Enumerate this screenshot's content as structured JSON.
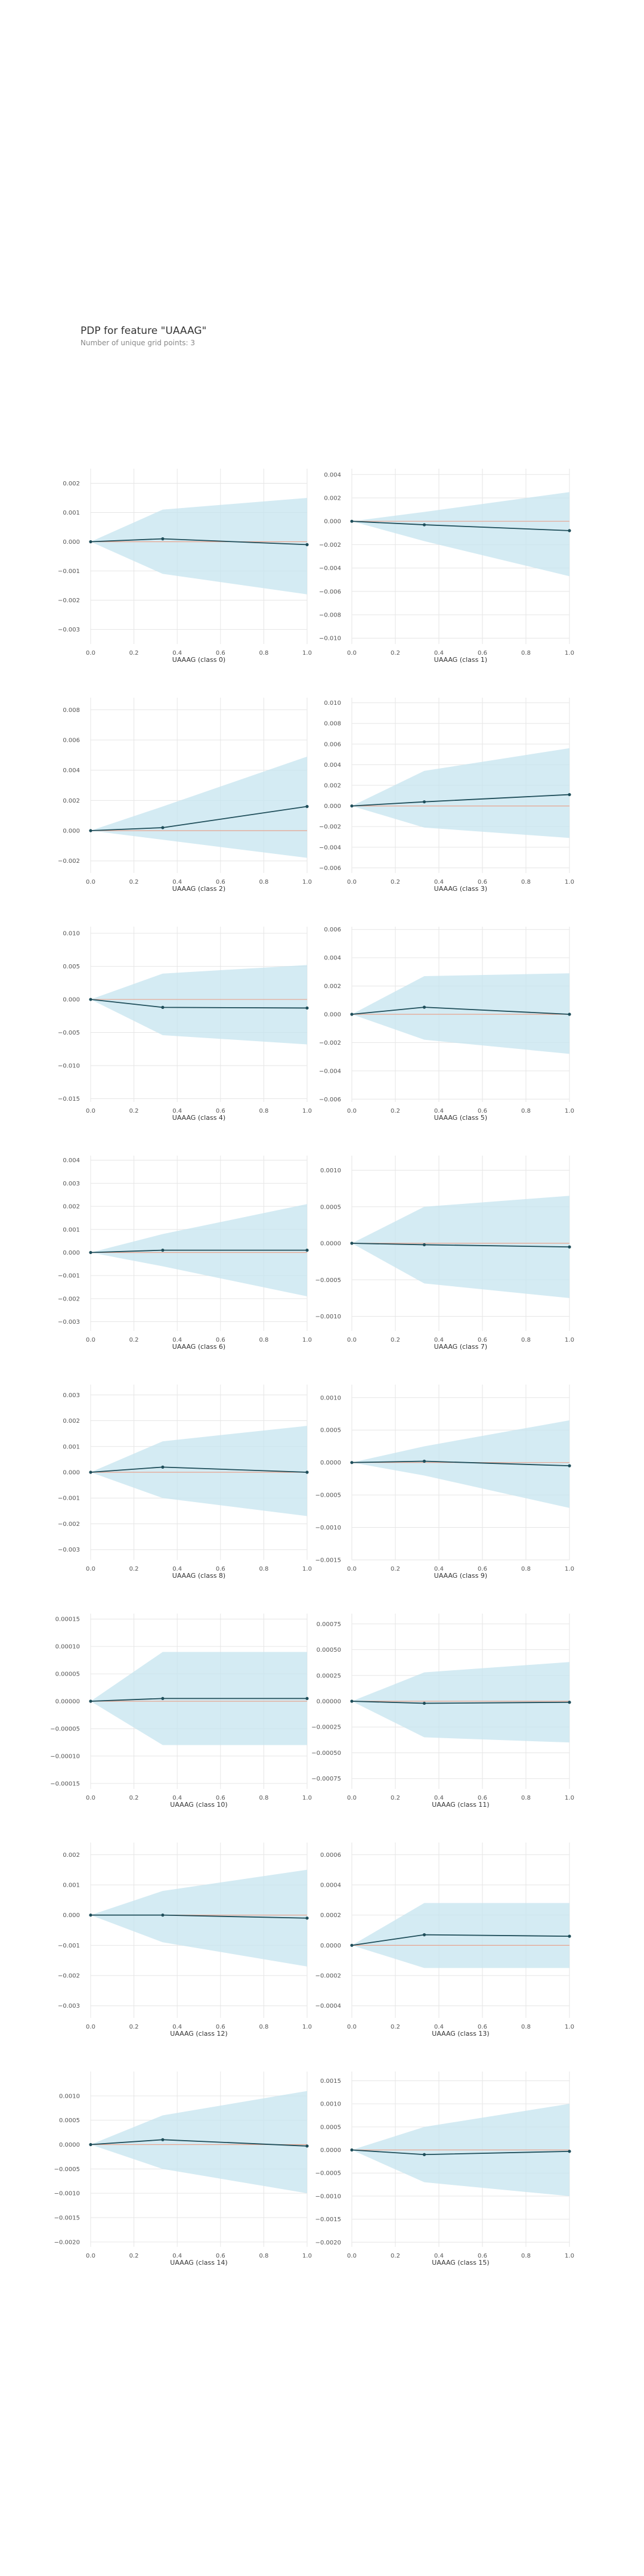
{
  "header": {
    "title": "PDP for feature \"UAAAG\"",
    "subtitle": "Number of unique grid points: 3"
  },
  "colors": {
    "line": "#1f4e5a",
    "band": "#c6e4ef",
    "baseline": "#e8a48f",
    "grid": "#e6e6e6",
    "tick_text": "#555555"
  },
  "chart_data": [
    {
      "type": "line",
      "xlabel": "UAAAG (class 0)",
      "x": [
        0,
        0.333,
        1
      ],
      "y": [
        0,
        0.0001,
        -0.0001
      ],
      "lower": [
        0,
        -0.0011,
        -0.0018
      ],
      "upper": [
        0,
        0.0011,
        0.0015
      ],
      "ylim": [
        -0.0035,
        0.0025
      ],
      "yticks": [
        0.002,
        0.001,
        0,
        -0.001,
        -0.002,
        -0.003
      ],
      "ytick_labels": [
        "0.002",
        "0.001",
        "0.000",
        "−0.001",
        "−0.002",
        "−0.003"
      ],
      "xticks": [
        0,
        0.2,
        0.4,
        0.6,
        0.8,
        1
      ],
      "xtick_labels": [
        "0.0",
        "0.2",
        "0.4",
        "0.6",
        "0.8",
        "1.0"
      ],
      "grid": true
    },
    {
      "type": "line",
      "xlabel": "UAAAG (class 1)",
      "x": [
        0,
        0.333,
        1
      ],
      "y": [
        0,
        -0.0003,
        -0.0008
      ],
      "lower": [
        0,
        -0.0017,
        -0.0047
      ],
      "upper": [
        0,
        0.0008,
        0.0025
      ],
      "ylim": [
        -0.0105,
        0.0045
      ],
      "yticks": [
        0.004,
        0.002,
        0,
        -0.002,
        -0.004,
        -0.006,
        -0.008,
        -0.01
      ],
      "ytick_labels": [
        "0.004",
        "0.002",
        "0.000",
        "−0.002",
        "−0.004",
        "−0.006",
        "−0.008",
        "−0.010"
      ],
      "xticks": [
        0,
        0.2,
        0.4,
        0.6,
        0.8,
        1
      ],
      "xtick_labels": [
        "0.0",
        "0.2",
        "0.4",
        "0.6",
        "0.8",
        "1.0"
      ],
      "grid": true
    },
    {
      "type": "line",
      "xlabel": "UAAAG (class 2)",
      "x": [
        0,
        0.333,
        1
      ],
      "y": [
        0,
        0.0002,
        0.0016
      ],
      "lower": [
        0,
        -0.0006,
        -0.0018
      ],
      "upper": [
        0,
        0.0016,
        0.0049
      ],
      "ylim": [
        -0.0028,
        0.0088
      ],
      "yticks": [
        0.008,
        0.006,
        0.004,
        0.002,
        0,
        -0.002
      ],
      "ytick_labels": [
        "0.008",
        "0.006",
        "0.004",
        "0.002",
        "0.000",
        "−0.002"
      ],
      "xticks": [
        0,
        0.2,
        0.4,
        0.6,
        0.8,
        1
      ],
      "xtick_labels": [
        "0.0",
        "0.2",
        "0.4",
        "0.6",
        "0.8",
        "1.0"
      ],
      "grid": true
    },
    {
      "type": "line",
      "xlabel": "UAAAG (class 3)",
      "x": [
        0,
        0.333,
        1
      ],
      "y": [
        0,
        0.0004,
        0.0011
      ],
      "lower": [
        0,
        -0.0021,
        -0.0031
      ],
      "upper": [
        0,
        0.0034,
        0.0056
      ],
      "ylim": [
        -0.0065,
        0.0105
      ],
      "yticks": [
        0.01,
        0.008,
        0.006,
        0.004,
        0.002,
        0,
        -0.002,
        -0.004,
        -0.006
      ],
      "ytick_labels": [
        "0.010",
        "0.008",
        "0.006",
        "0.004",
        "0.002",
        "0.000",
        "−0.002",
        "−0.004",
        "−0.006"
      ],
      "xticks": [
        0,
        0.2,
        0.4,
        0.6,
        0.8,
        1
      ],
      "xtick_labels": [
        "0.0",
        "0.2",
        "0.4",
        "0.6",
        "0.8",
        "1.0"
      ],
      "grid": true
    },
    {
      "type": "line",
      "xlabel": "UAAAG (class 4)",
      "x": [
        0,
        0.333,
        1
      ],
      "y": [
        0,
        -0.0012,
        -0.0013
      ],
      "lower": [
        0,
        -0.0054,
        -0.0068
      ],
      "upper": [
        0,
        0.0039,
        0.0052
      ],
      "ylim": [
        -0.0155,
        0.011
      ],
      "yticks": [
        0.01,
        0.005,
        0,
        -0.005,
        -0.01,
        -0.015
      ],
      "ytick_labels": [
        "0.010",
        "0.005",
        "0.000",
        "−0.005",
        "−0.010",
        "−0.015"
      ],
      "xticks": [
        0,
        0.2,
        0.4,
        0.6,
        0.8,
        1
      ],
      "xtick_labels": [
        "0.0",
        "0.2",
        "0.4",
        "0.6",
        "0.8",
        "1.0"
      ],
      "grid": true
    },
    {
      "type": "line",
      "xlabel": "UAAAG (class 5)",
      "x": [
        0,
        0.333,
        1
      ],
      "y": [
        0,
        0.0005,
        0
      ],
      "lower": [
        0,
        -0.0018,
        -0.0028
      ],
      "upper": [
        0,
        0.0027,
        0.0029
      ],
      "ylim": [
        -0.0062,
        0.0062
      ],
      "yticks": [
        0.006,
        0.004,
        0.002,
        0,
        -0.002,
        -0.004,
        -0.006
      ],
      "ytick_labels": [
        "0.006",
        "0.004",
        "0.002",
        "0.000",
        "−0.002",
        "−0.004",
        "−0.006"
      ],
      "xticks": [
        0,
        0.2,
        0.4,
        0.6,
        0.8,
        1
      ],
      "xtick_labels": [
        "0.0",
        "0.2",
        "0.4",
        "0.6",
        "0.8",
        "1.0"
      ],
      "grid": true
    },
    {
      "type": "line",
      "xlabel": "UAAAG (class 6)",
      "x": [
        0,
        0.333,
        1
      ],
      "y": [
        0,
        0.0001,
        0.0001
      ],
      "lower": [
        0,
        -0.0006,
        -0.0019
      ],
      "upper": [
        0,
        0.0008,
        0.0021
      ],
      "ylim": [
        -0.0034,
        0.0042
      ],
      "yticks": [
        0.004,
        0.003,
        0.002,
        0.001,
        0,
        -0.001,
        -0.002,
        -0.003
      ],
      "ytick_labels": [
        "0.004",
        "0.003",
        "0.002",
        "0.001",
        "0.000",
        "−0.001",
        "−0.002",
        "−0.003"
      ],
      "xticks": [
        0,
        0.2,
        0.4,
        0.6,
        0.8,
        1
      ],
      "xtick_labels": [
        "0.0",
        "0.2",
        "0.4",
        "0.6",
        "0.8",
        "1.0"
      ],
      "grid": true
    },
    {
      "type": "line",
      "xlabel": "UAAAG (class 7)",
      "x": [
        0,
        0.333,
        1
      ],
      "y": [
        0,
        -2e-05,
        -5e-05
      ],
      "lower": [
        0,
        -0.00055,
        -0.00075
      ],
      "upper": [
        0,
        0.0005,
        0.00065
      ],
      "ylim": [
        -0.0012,
        0.0012
      ],
      "yticks": [
        0.001,
        0.0005,
        0,
        -0.0005,
        -0.001
      ],
      "ytick_labels": [
        "0.0010",
        "0.0005",
        "0.0000",
        "−0.0005",
        "−0.0010"
      ],
      "xticks": [
        0,
        0.2,
        0.4,
        0.6,
        0.8,
        1
      ],
      "xtick_labels": [
        "0.0",
        "0.2",
        "0.4",
        "0.6",
        "0.8",
        "1.0"
      ],
      "grid": true
    },
    {
      "type": "line",
      "xlabel": "UAAAG (class 8)",
      "x": [
        0,
        0.333,
        1
      ],
      "y": [
        0,
        0.0002,
        0
      ],
      "lower": [
        0,
        -0.001,
        -0.0017
      ],
      "upper": [
        0,
        0.0012,
        0.0018
      ],
      "ylim": [
        -0.0034,
        0.0034
      ],
      "yticks": [
        0.003,
        0.002,
        0.001,
        0,
        -0.001,
        -0.002,
        -0.003
      ],
      "ytick_labels": [
        "0.003",
        "0.002",
        "0.001",
        "0.000",
        "−0.001",
        "−0.002",
        "−0.003"
      ],
      "xticks": [
        0,
        0.2,
        0.4,
        0.6,
        0.8,
        1
      ],
      "xtick_labels": [
        "0.0",
        "0.2",
        "0.4",
        "0.6",
        "0.8",
        "1.0"
      ],
      "grid": true
    },
    {
      "type": "line",
      "xlabel": "UAAAG (class 9)",
      "x": [
        0,
        0.333,
        1
      ],
      "y": [
        0,
        2e-05,
        -5e-05
      ],
      "lower": [
        0,
        -0.0002,
        -0.0007
      ],
      "upper": [
        0,
        0.00025,
        0.00065
      ],
      "ylim": [
        -0.0015,
        0.0012
      ],
      "yticks": [
        0.001,
        0.0005,
        0,
        -0.0005,
        -0.001,
        -0.0015
      ],
      "ytick_labels": [
        "0.0010",
        "0.0005",
        "0.0000",
        "−0.0005",
        "−0.0010",
        "−0.0015"
      ],
      "xticks": [
        0,
        0.2,
        0.4,
        0.6,
        0.8,
        1
      ],
      "xtick_labels": [
        "0.0",
        "0.2",
        "0.4",
        "0.6",
        "0.8",
        "1.0"
      ],
      "grid": true
    },
    {
      "type": "line",
      "xlabel": "UAAAG (class 10)",
      "x": [
        0,
        0.333,
        1
      ],
      "y": [
        0,
        5e-06,
        5e-06
      ],
      "lower": [
        0,
        -8e-05,
        -8e-05
      ],
      "upper": [
        0,
        9e-05,
        9e-05
      ],
      "ylim": [
        -0.00016,
        0.00016
      ],
      "yticks": [
        0.00015,
        0.0001,
        5e-05,
        0,
        -5e-05,
        -0.0001,
        -0.00015
      ],
      "ytick_labels": [
        "0.00015",
        "0.00010",
        "0.00005",
        "0.00000",
        "−0.00005",
        "−0.00010",
        "−0.00015"
      ],
      "xticks": [
        0,
        0.2,
        0.4,
        0.6,
        0.8,
        1
      ],
      "xtick_labels": [
        "0.0",
        "0.2",
        "0.4",
        "0.6",
        "0.8",
        "1.0"
      ],
      "grid": true
    },
    {
      "type": "line",
      "xlabel": "UAAAG (class 11)",
      "x": [
        0,
        0.333,
        1
      ],
      "y": [
        0,
        -2e-05,
        -1e-05
      ],
      "lower": [
        0,
        -0.00035,
        -0.0004
      ],
      "upper": [
        0,
        0.00028,
        0.00038
      ],
      "ylim": [
        -0.00085,
        0.00085
      ],
      "yticks": [
        0.00075,
        0.0005,
        0.00025,
        0,
        -0.00025,
        -0.0005,
        -0.00075
      ],
      "ytick_labels": [
        "0.00075",
        "0.00050",
        "0.00025",
        "0.00000",
        "−0.00025",
        "−0.00050",
        "−0.00075"
      ],
      "xticks": [
        0,
        0.2,
        0.4,
        0.6,
        0.8,
        1
      ],
      "xtick_labels": [
        "0.0",
        "0.2",
        "0.4",
        "0.6",
        "0.8",
        "1.0"
      ],
      "grid": true
    },
    {
      "type": "line",
      "xlabel": "UAAAG (class 12)",
      "x": [
        0,
        0.333,
        1
      ],
      "y": [
        0,
        0,
        -0.0001
      ],
      "lower": [
        0,
        -0.0009,
        -0.0017
      ],
      "upper": [
        0,
        0.0008,
        0.0015
      ],
      "ylim": [
        -0.0034,
        0.0024
      ],
      "yticks": [
        0.002,
        0.001,
        0,
        -0.001,
        -0.002,
        -0.003
      ],
      "ytick_labels": [
        "0.002",
        "0.001",
        "0.000",
        "−0.001",
        "−0.002",
        "−0.003"
      ],
      "xticks": [
        0,
        0.2,
        0.4,
        0.6,
        0.8,
        1
      ],
      "xtick_labels": [
        "0.0",
        "0.2",
        "0.4",
        "0.6",
        "0.8",
        "1.0"
      ],
      "grid": true
    },
    {
      "type": "line",
      "xlabel": "UAAAG (class 13)",
      "x": [
        0,
        0.333,
        1
      ],
      "y": [
        0,
        7e-05,
        6e-05
      ],
      "lower": [
        0,
        -0.00015,
        -0.00015
      ],
      "upper": [
        0,
        0.00028,
        0.00028
      ],
      "ylim": [
        -0.00048,
        0.00068
      ],
      "yticks": [
        0.0006,
        0.0004,
        0.0002,
        0,
        -0.0002,
        -0.0004
      ],
      "ytick_labels": [
        "0.0006",
        "0.0004",
        "0.0002",
        "0.0000",
        "−0.0002",
        "−0.0004"
      ],
      "xticks": [
        0,
        0.2,
        0.4,
        0.6,
        0.8,
        1
      ],
      "xtick_labels": [
        "0.0",
        "0.2",
        "0.4",
        "0.6",
        "0.8",
        "1.0"
      ],
      "grid": true
    },
    {
      "type": "line",
      "xlabel": "UAAAG (class 14)",
      "x": [
        0,
        0.333,
        1
      ],
      "y": [
        0,
        0.0001,
        -3e-05
      ],
      "lower": [
        0,
        -0.0005,
        -0.001
      ],
      "upper": [
        0,
        0.0006,
        0.0011
      ],
      "ylim": [
        -0.0021,
        0.0015
      ],
      "yticks": [
        0.001,
        0.0005,
        0,
        -0.0005,
        -0.001,
        -0.0015,
        -0.002
      ],
      "ytick_labels": [
        "0.0010",
        "0.0005",
        "0.0000",
        "−0.0005",
        "−0.0010",
        "−0.0015",
        "−0.0020"
      ],
      "xticks": [
        0,
        0.2,
        0.4,
        0.6,
        0.8,
        1
      ],
      "xtick_labels": [
        "0.0",
        "0.2",
        "0.4",
        "0.6",
        "0.8",
        "1.0"
      ],
      "grid": true
    },
    {
      "type": "line",
      "xlabel": "UAAAG (class 15)",
      "x": [
        0,
        0.333,
        1
      ],
      "y": [
        0,
        -0.0001,
        -3e-05
      ],
      "lower": [
        0,
        -0.0007,
        -0.001
      ],
      "upper": [
        0,
        0.0005,
        0.001
      ],
      "ylim": [
        -0.0021,
        0.0017
      ],
      "yticks": [
        0.0015,
        0.001,
        0.0005,
        0,
        -0.0005,
        -0.001,
        -0.0015,
        -0.002
      ],
      "ytick_labels": [
        "0.0015",
        "0.0010",
        "0.0005",
        "0.0000",
        "−0.0005",
        "−0.0010",
        "−0.0015",
        "−0.0020"
      ],
      "xticks": [
        0,
        0.2,
        0.4,
        0.6,
        0.8,
        1
      ],
      "xtick_labels": [
        "0.0",
        "0.2",
        "0.4",
        "0.6",
        "0.8",
        "1.0"
      ],
      "grid": true
    }
  ]
}
